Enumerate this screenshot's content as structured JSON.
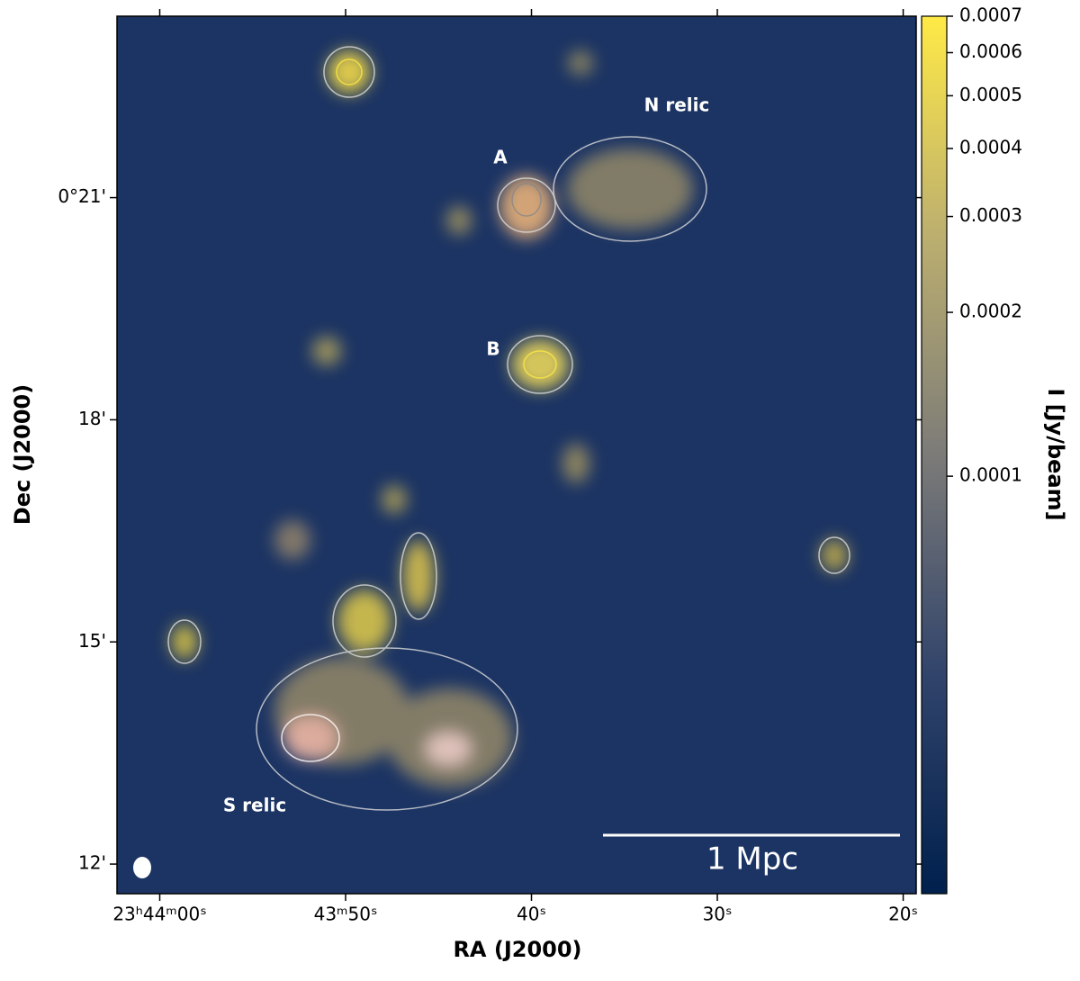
{
  "chart_data": {
    "type": "image",
    "xlabel": "RA (J2000)",
    "ylabel": "Dec (J2000)",
    "xlim": [
      -2.3,
      40.7
    ],
    "xticks": [
      {
        "value": 0,
        "label": "23ʰ44ᵐ00ˢ"
      },
      {
        "value": 10,
        "label": "43ᵐ50ˢ"
      },
      {
        "value": 20,
        "label": "40ˢ"
      },
      {
        "value": 30,
        "label": "30ˢ"
      },
      {
        "value": 40,
        "label": "20ˢ"
      }
    ],
    "ylim": [
      11.6,
      23.45
    ],
    "yticks": [
      {
        "value": 12,
        "label": "12'"
      },
      {
        "value": 15,
        "label": "15'"
      },
      {
        "value": 18,
        "label": "18'"
      },
      {
        "value": 21,
        "label": "0°21'"
      }
    ],
    "colorbar": {
      "label": "I [Jy/beam]",
      "log": true,
      "lim": [
        1.71e-05,
        0.0007
      ],
      "ticks": [
        0.0001,
        0.0002,
        0.0003,
        0.0004,
        0.0005,
        0.0006,
        0.0007
      ],
      "colors": [
        "#00204d",
        "#31446b",
        "#7c7b78",
        "#bcaf6f",
        "#ffea46"
      ]
    },
    "annotations": [
      "A",
      "B",
      "N relic",
      "S relic",
      "1 Mpc"
    ]
  }
}
